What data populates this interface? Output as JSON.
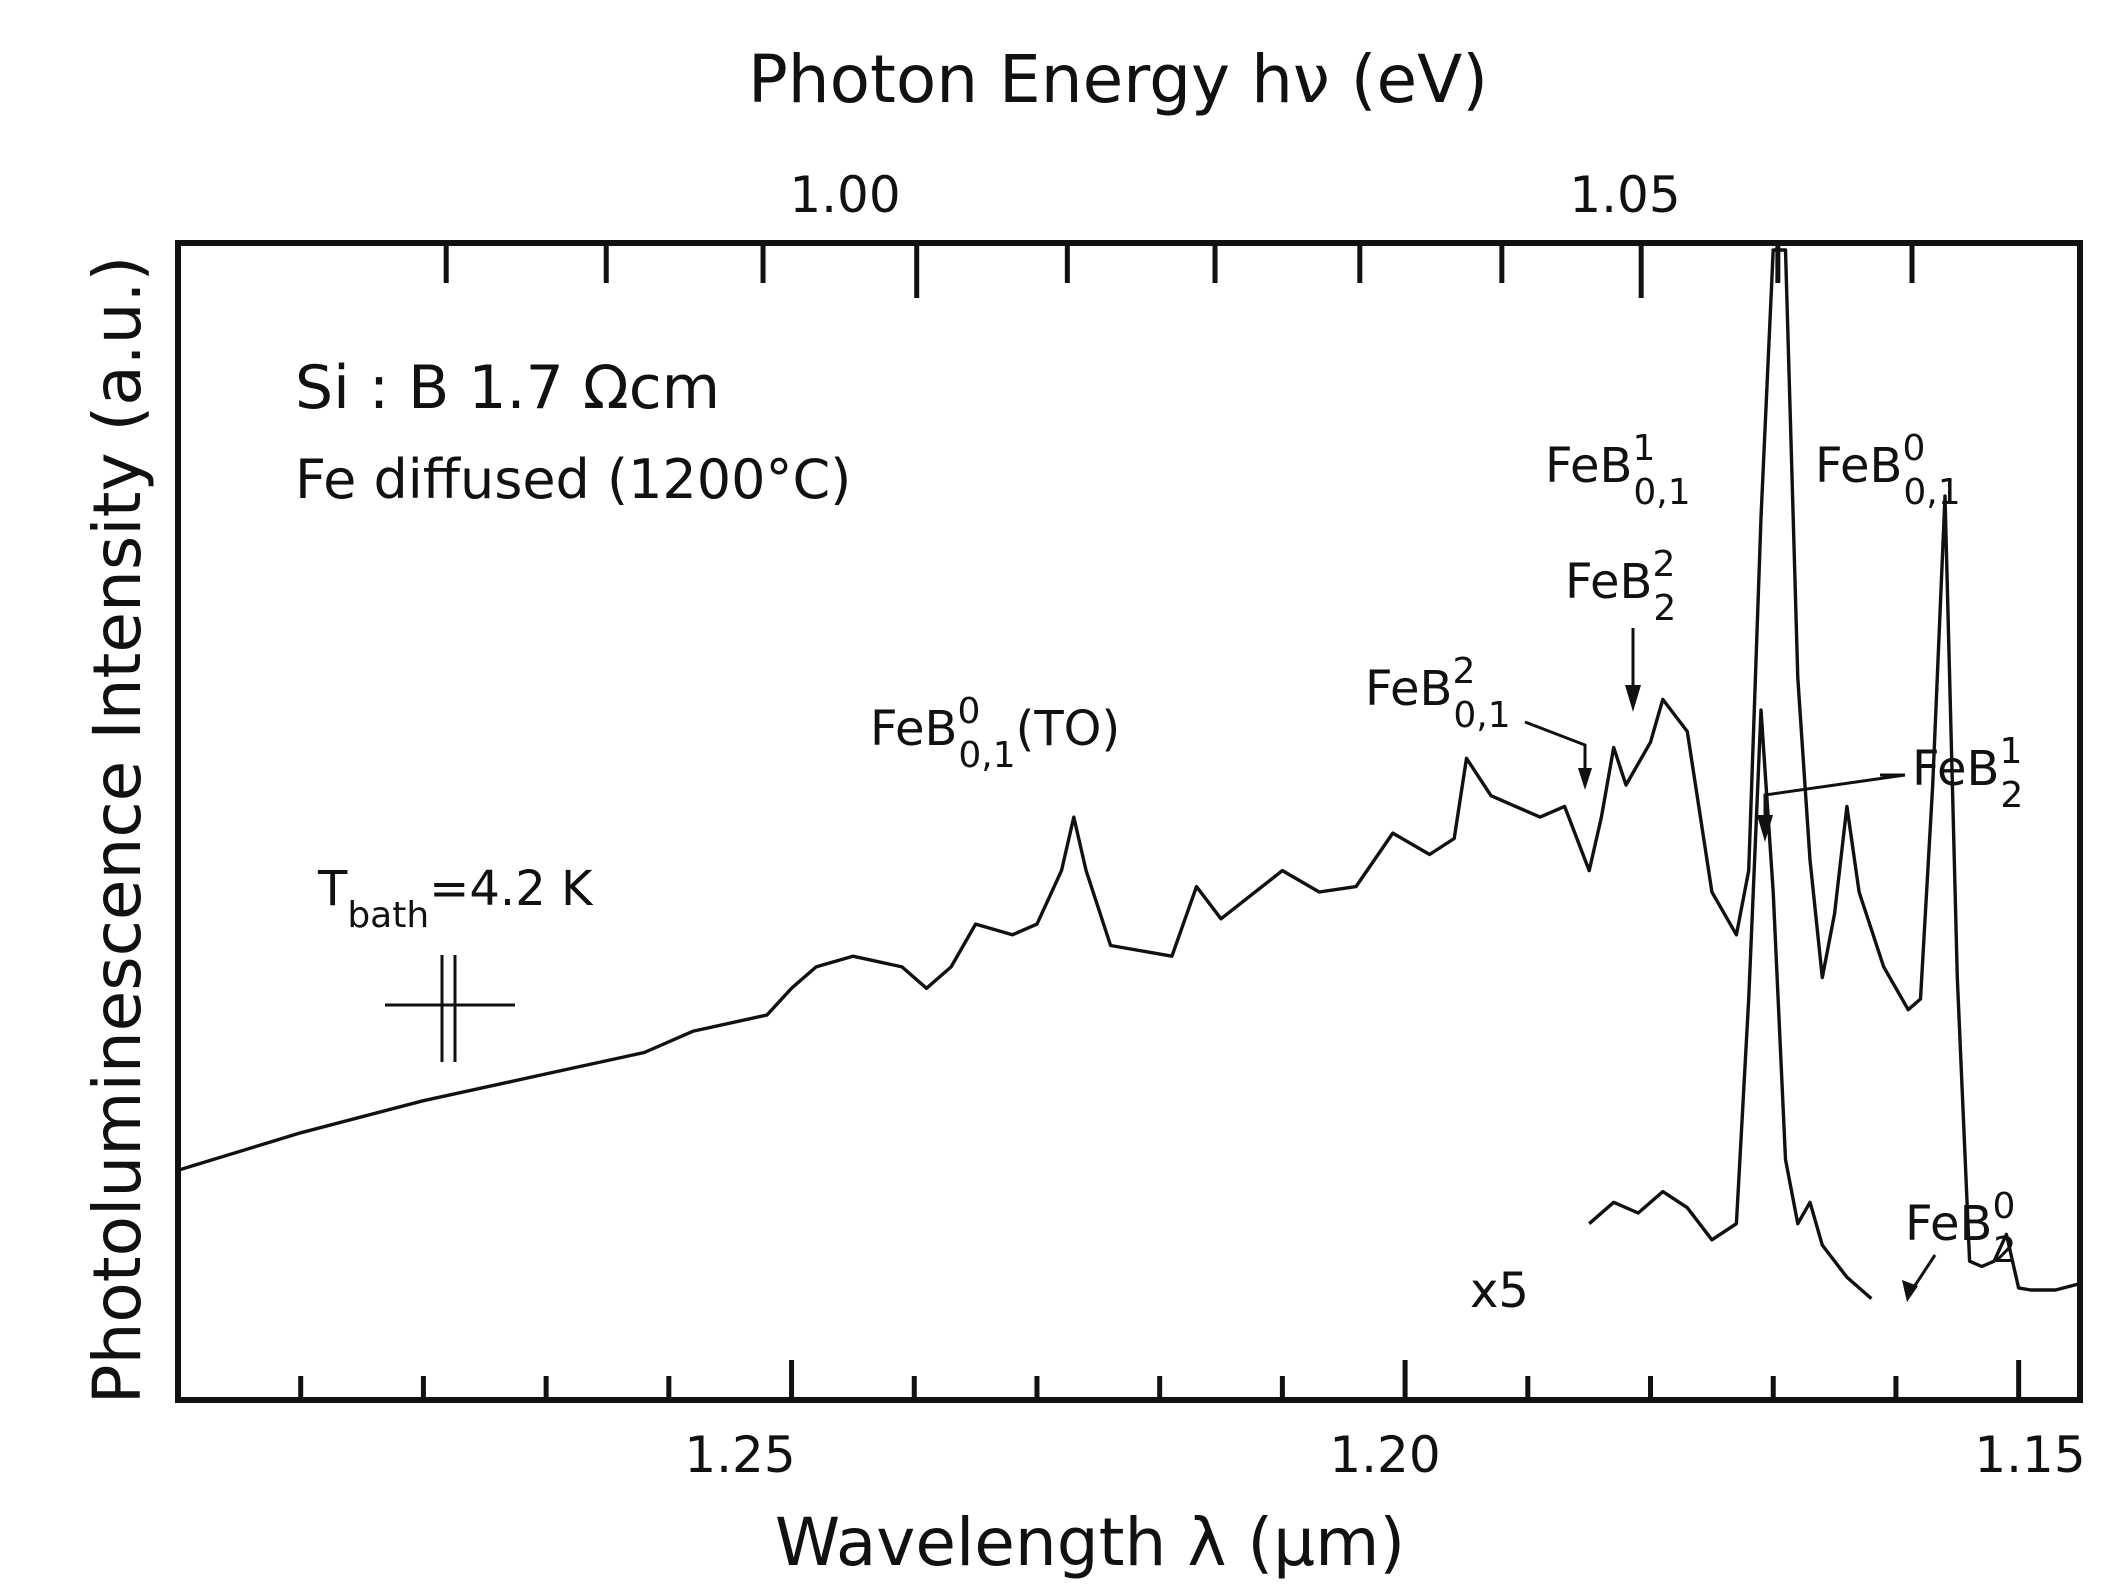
{
  "chart_data": {
    "type": "line",
    "xlabel": "Wavelength λ (μm)",
    "x2label": "Photon Energy hν (eV)",
    "ylabel": "Photoluminescence Intensity   (a.u.)",
    "xlim": [
      1.3,
      1.145
    ],
    "x_direction": "reversed",
    "ylim": [
      0,
      100
    ],
    "x_ticks": [
      1.25,
      1.2,
      1.15
    ],
    "x_tick_labels": [
      "1.25",
      "1.20",
      "1.15"
    ],
    "x2_ticks": [
      1.0,
      1.05
    ],
    "x2_tick_labels": [
      "1.00",
      "1.05"
    ],
    "sample": {
      "line1": "Si : B   1.7 Ωcm",
      "line2": "Fe diffused (1200°C)"
    },
    "temperature": {
      "main": "T",
      "sub": "bath",
      "rest": "=4.2 K"
    },
    "magnification_label": "x5",
    "peak_labels": {
      "feb01_to": {
        "base": "FeB",
        "sup": "0",
        "sub": "0,1",
        "suffix": "(TO)"
      },
      "feb01_2": {
        "base": "FeB",
        "sup": "2",
        "sub": "0,1",
        "suffix": ""
      },
      "feb2_2": {
        "base": "FeB",
        "sup": "2",
        "sub": "2",
        "suffix": ""
      },
      "feb01_1": {
        "base": "FeB",
        "sup": "1",
        "sub": "0,1",
        "suffix": ""
      },
      "feb01_0": {
        "base": "FeB",
        "sup": "0",
        "sub": "0,1",
        "suffix": ""
      },
      "feb2_1": {
        "base": "FeB",
        "sup": "1",
        "sub": "2",
        "suffix": ""
      },
      "feb2_0": {
        "base": "FeB",
        "sup": "0",
        "sub": "2",
        "suffix": ""
      }
    },
    "series": [
      {
        "values": [
          [
            1.3,
            14.0
          ],
          [
            1.29,
            17.5
          ],
          [
            1.28,
            20.5
          ],
          [
            1.27,
            23.0
          ],
          [
            1.262,
            25.0
          ],
          [
            1.258,
            27.0
          ],
          [
            1.252,
            28.5
          ],
          [
            1.25,
            31.0
          ],
          [
            1.248,
            33.0
          ],
          [
            1.245,
            34.0
          ],
          [
            1.241,
            33.0
          ],
          [
            1.239,
            31.0
          ],
          [
            1.237,
            33.0
          ],
          [
            1.235,
            37.0
          ],
          [
            1.232,
            36.0
          ],
          [
            1.23,
            37.0
          ],
          [
            1.228,
            42.0
          ],
          [
            1.227,
            47.0
          ],
          [
            1.226,
            42.0
          ],
          [
            1.224,
            35.0
          ],
          [
            1.219,
            34.0
          ],
          [
            1.217,
            40.5
          ],
          [
            1.215,
            37.5
          ],
          [
            1.21,
            42.0
          ],
          [
            1.207,
            40.0
          ],
          [
            1.204,
            40.5
          ],
          [
            1.201,
            45.5
          ],
          [
            1.198,
            43.5
          ],
          [
            1.196,
            45.0
          ],
          [
            1.195,
            52.5
          ],
          [
            1.193,
            49.0
          ],
          [
            1.191,
            48.0
          ],
          [
            1.189,
            47.0
          ],
          [
            1.187,
            48.0
          ],
          [
            1.185,
            42.0
          ],
          [
            1.184,
            47.0
          ],
          [
            1.183,
            53.5
          ],
          [
            1.182,
            50.0
          ],
          [
            1.18,
            54.0
          ],
          [
            1.179,
            58.0
          ],
          [
            1.177,
            55.0
          ],
          [
            1.175,
            40.0
          ],
          [
            1.173,
            36.0
          ],
          [
            1.172,
            42.0
          ],
          [
            1.171,
            75.0
          ],
          [
            1.17,
            100.0
          ],
          [
            1.169,
            100.0
          ],
          [
            1.168,
            60.0
          ],
          [
            1.167,
            43.0
          ],
          [
            1.166,
            32.0
          ],
          [
            1.165,
            38.0
          ],
          [
            1.164,
            48.0
          ],
          [
            1.163,
            40.0
          ],
          [
            1.161,
            33.0
          ],
          [
            1.159,
            29.0
          ],
          [
            1.158,
            30.0
          ],
          [
            1.157,
            50.0
          ],
          [
            1.156,
            77.0
          ],
          [
            1.155,
            32.0
          ],
          [
            1.154,
            5.5
          ],
          [
            1.153,
            5.0
          ],
          [
            1.152,
            5.5
          ],
          [
            1.151,
            8.0
          ],
          [
            1.15,
            3.0
          ],
          [
            1.149,
            2.8
          ],
          [
            1.147,
            2.8
          ],
          [
            1.145,
            3.4
          ]
        ]
      },
      {
        "values": [
          [
            1.185,
            9.0
          ],
          [
            1.183,
            11.0
          ],
          [
            1.181,
            10.0
          ],
          [
            1.179,
            12.0
          ],
          [
            1.177,
            10.5
          ],
          [
            1.175,
            7.5
          ],
          [
            1.173,
            9.0
          ],
          [
            1.172,
            30.0
          ],
          [
            1.171,
            57.0
          ],
          [
            1.17,
            40.0
          ],
          [
            1.169,
            15.0
          ],
          [
            1.168,
            9.0
          ],
          [
            1.167,
            11.0
          ],
          [
            1.166,
            7.0
          ],
          [
            1.164,
            4.0
          ],
          [
            1.162,
            2.0
          ]
        ]
      }
    ]
  }
}
